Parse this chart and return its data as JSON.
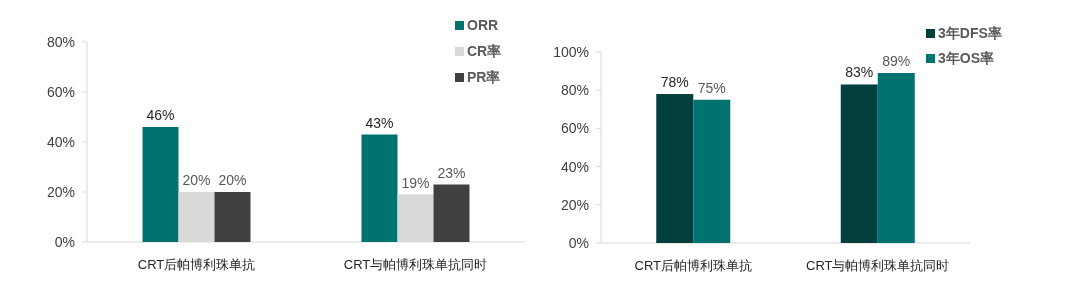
{
  "chart_data": [
    {
      "type": "bar",
      "categories": [
        "CRT后帕博利珠单抗",
        "CRT与帕博利珠单抗同时"
      ],
      "ylim": [
        0,
        80
      ],
      "yticks": [
        {
          "value": 0,
          "label": "0%"
        },
        {
          "value": 20,
          "label": "20%"
        },
        {
          "value": 40,
          "label": "40%"
        },
        {
          "value": 60,
          "label": "60%"
        },
        {
          "value": 80,
          "label": "80%"
        }
      ],
      "legend": "top right",
      "grid": false,
      "series": [
        {
          "name": "ORR",
          "color": "#007370",
          "values": [
            46,
            43
          ],
          "value_labels": [
            "46%",
            "43%"
          ]
        },
        {
          "name": "CR率",
          "color": "#d9d9d9",
          "values": [
            20,
            19
          ],
          "value_labels": [
            "20%",
            "19%"
          ]
        },
        {
          "name": "PR率",
          "color": "#404040",
          "values": [
            20,
            23
          ],
          "value_labels": [
            "20%",
            "23%"
          ]
        }
      ]
    },
    {
      "type": "bar",
      "categories": [
        "CRT后帕博利珠单抗",
        "CRT与帕博利珠单抗同时"
      ],
      "ylim": [
        0,
        100
      ],
      "yticks": [
        {
          "value": 0,
          "label": "0%"
        },
        {
          "value": 20,
          "label": "20%"
        },
        {
          "value": 40,
          "label": "40%"
        },
        {
          "value": 60,
          "label": "60%"
        },
        {
          "value": 80,
          "label": "80%"
        },
        {
          "value": 100,
          "label": "100%"
        }
      ],
      "legend": "top right",
      "grid": false,
      "series": [
        {
          "name": "3年DFS率",
          "color": "#033f3d",
          "values": [
            78,
            83
          ],
          "value_labels": [
            "78%",
            "83%"
          ]
        },
        {
          "name": "3年OS率",
          "color": "#007370",
          "values": [
            75,
            89
          ],
          "value_labels": [
            "75%",
            "89%"
          ]
        }
      ]
    }
  ]
}
